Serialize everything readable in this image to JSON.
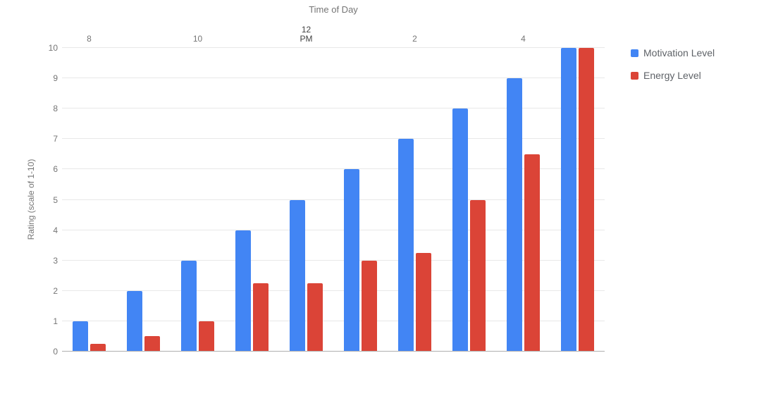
{
  "colors": {
    "background": "#ffffff",
    "motivation_blue": "#4285f4",
    "energy_red": "#db4437",
    "axis_text": "#757575",
    "axis_text_emphasis": "#424242",
    "legend_text": "#5f6368",
    "gridline": "#e8e8e8",
    "baseline": "#b0b0b0"
  },
  "chart_data": {
    "type": "bar",
    "xlabel": "Time of Day",
    "ylabel": "Rating (scale of 1-10)",
    "ylim": [
      0,
      10
    ],
    "y_ticks": [
      0,
      1,
      2,
      3,
      4,
      5,
      6,
      7,
      8,
      9,
      10
    ],
    "grid": "horizontal",
    "legend_position": "right",
    "num_groups": 10,
    "x_ticks": [
      {
        "label_lines": [
          "8"
        ],
        "group": 0,
        "emphasis": false
      },
      {
        "label_lines": [
          "10"
        ],
        "group": 2,
        "emphasis": false
      },
      {
        "label_lines": [
          "12",
          "PM"
        ],
        "group": 4,
        "emphasis": true
      },
      {
        "label_lines": [
          "2"
        ],
        "group": 6,
        "emphasis": false
      },
      {
        "label_lines": [
          "4"
        ],
        "group": 8,
        "emphasis": false
      }
    ],
    "series": [
      {
        "name": "Motivation Level",
        "color": "#4285f4",
        "values": [
          1,
          2,
          3,
          4,
          5,
          6,
          7,
          8,
          9,
          10
        ]
      },
      {
        "name": "Energy Level",
        "color": "#db4437",
        "values": [
          0.25,
          0.5,
          1,
          2.25,
          2.25,
          3,
          3.25,
          5,
          6.5,
          10
        ]
      }
    ]
  }
}
